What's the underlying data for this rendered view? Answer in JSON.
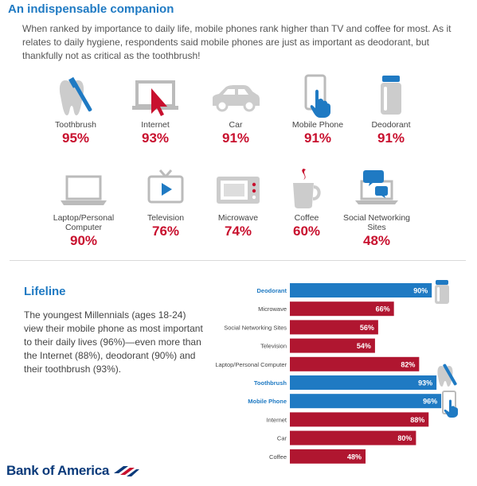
{
  "header": {
    "title": "An indispensable companion",
    "intro": "When ranked by importance to daily life, mobile phones rank higher than TV and coffee for most.  As it relates to daily hygiene, respondents said mobile phones are just as important as deodorant, but thankfully not as critical as the toothbrush!"
  },
  "items": [
    {
      "label": "Toothbrush",
      "value": "95%",
      "icon": "toothbrush-icon"
    },
    {
      "label": "Internet",
      "value": "93%",
      "icon": "internet-cursor-icon"
    },
    {
      "label": "Car",
      "value": "91%",
      "icon": "car-icon"
    },
    {
      "label": "Mobile Phone",
      "value": "91%",
      "icon": "mobile-phone-icon"
    },
    {
      "label": "Deodorant",
      "value": "91%",
      "icon": "deodorant-icon"
    },
    {
      "label": "Laptop/Personal Computer",
      "value": "90%",
      "icon": "laptop-icon"
    },
    {
      "label": "Television",
      "value": "76%",
      "icon": "television-icon"
    },
    {
      "label": "Microwave",
      "value": "74%",
      "icon": "microwave-icon"
    },
    {
      "label": "Coffee",
      "value": "60%",
      "icon": "coffee-icon"
    },
    {
      "label": "Social Networking Sites",
      "value": "48%",
      "icon": "social-networking-icon"
    }
  ],
  "lifeline": {
    "title": "Lifeline",
    "text": "The youngest Millennials (ages 18-24) view their mobile phone as most important to their daily lives (96%)—even more than the Internet (88%), deodorant (90%) and their toothbrush (93%)."
  },
  "chart_data": {
    "type": "bar",
    "orientation": "horizontal",
    "categories": [
      "Deodorant",
      "Microwave",
      "Social Networking Sites",
      "Television",
      "Laptop/Personal Computer",
      "Toothbrush",
      "Mobile Phone",
      "Internet",
      "Car",
      "Coffee"
    ],
    "values": [
      90,
      66,
      56,
      54,
      82,
      93,
      96,
      88,
      80,
      48
    ],
    "data_labels": [
      "90%",
      "66%",
      "56%",
      "54%",
      "82%",
      "93%",
      "96%",
      "88%",
      "80%",
      "48%"
    ],
    "highlighted": [
      "Deodorant",
      "Toothbrush",
      "Mobile Phone"
    ],
    "xlim": [
      0,
      100
    ]
  },
  "colors": {
    "accent_blue": "#1f7ac3",
    "accent_red": "#c8102e",
    "bar_red": "#b01630",
    "navy": "#0a3a7a",
    "icon_gray": "#cccccc"
  },
  "logo": {
    "text": "Bank of America"
  }
}
